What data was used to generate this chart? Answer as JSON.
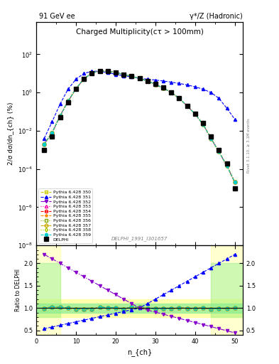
{
  "title_left": "91 GeV ee",
  "title_right": "γ*/Z (Hadronic)",
  "plot_title": "Charged Multiplicity",
  "plot_subtitle": "(cτ > 100mm)",
  "ylabel_main": "2/σ dσ/dn_{ch} (%)",
  "ylabel_ratio": "Ratio to DELPHI",
  "xlabel": "n_{ch}",
  "ref_label": "DELPHI_1991_I301657",
  "rivet_label": "Rivet 3.1.10, ≥ 3.1M events",
  "legend_entries": [
    "DELPHI",
    "Pythia 6.428 350",
    "Pythia 6.428 351",
    "Pythia 6.428 352",
    "Pythia 6.428 353",
    "Pythia 6.428 354",
    "Pythia 6.428 355",
    "Pythia 6.428 356",
    "Pythia 6.428 357",
    "Pythia 6.428 358",
    "Pythia 6.428 359"
  ],
  "nch_values": [
    2,
    4,
    6,
    8,
    10,
    12,
    14,
    16,
    18,
    20,
    22,
    24,
    26,
    28,
    30,
    32,
    34,
    36,
    38,
    40,
    42,
    44,
    46,
    48,
    50
  ],
  "delphi_data": [
    0.001,
    0.005,
    0.05,
    0.3,
    1.5,
    5,
    10,
    13,
    13,
    11,
    9,
    7,
    5.5,
    4,
    2.8,
    1.8,
    1.0,
    0.5,
    0.2,
    0.08,
    0.025,
    0.005,
    0.001,
    0.0002,
    1e-05
  ],
  "py350_data": [
    0.002,
    0.008,
    0.06,
    0.35,
    1.6,
    5.2,
    10.5,
    13.5,
    13,
    11,
    9,
    7,
    5.5,
    4,
    2.7,
    1.7,
    1.0,
    0.5,
    0.2,
    0.075,
    0.022,
    0.004,
    0.0008,
    0.00015,
    2e-05
  ],
  "py351_data": [
    0.004,
    0.03,
    0.25,
    1.5,
    5,
    10,
    13,
    13,
    11,
    9,
    7.5,
    6.5,
    5.5,
    5,
    4.5,
    4,
    3.5,
    3,
    2.5,
    2,
    1.5,
    1,
    0.5,
    0.15,
    0.04
  ],
  "py352_data": [
    0.002,
    0.008,
    0.06,
    0.35,
    1.6,
    5.2,
    10.5,
    13.5,
    13,
    11,
    9,
    7,
    5.5,
    4,
    2.7,
    1.7,
    1.0,
    0.5,
    0.2,
    0.075,
    0.022,
    0.004,
    0.0008,
    0.00015,
    2e-05
  ],
  "py353_data": [
    0.002,
    0.008,
    0.06,
    0.35,
    1.6,
    5.2,
    10.5,
    13.5,
    13,
    11,
    9,
    7,
    5.5,
    4,
    2.7,
    1.7,
    1.0,
    0.5,
    0.2,
    0.075,
    0.022,
    0.004,
    0.0008,
    0.00015,
    2e-05
  ],
  "py354_data": [
    0.002,
    0.008,
    0.06,
    0.35,
    1.6,
    5.2,
    10.5,
    13.5,
    13,
    11,
    9,
    7,
    5.5,
    4,
    2.7,
    1.7,
    1.0,
    0.5,
    0.2,
    0.075,
    0.022,
    0.004,
    0.0008,
    0.00015,
    2e-05
  ],
  "py355_data": [
    0.002,
    0.008,
    0.06,
    0.35,
    1.6,
    5.2,
    10.5,
    13.5,
    13,
    11,
    9,
    7,
    5.5,
    4,
    2.7,
    1.7,
    1.0,
    0.5,
    0.2,
    0.075,
    0.022,
    0.004,
    0.0008,
    0.00015,
    2e-05
  ],
  "py356_data": [
    0.002,
    0.008,
    0.06,
    0.35,
    1.6,
    5.2,
    10.5,
    13.5,
    13,
    11,
    9,
    7,
    5.5,
    4,
    2.7,
    1.7,
    1.0,
    0.5,
    0.2,
    0.075,
    0.022,
    0.004,
    0.0008,
    0.00015,
    2e-05
  ],
  "py357_data": [
    0.002,
    0.008,
    0.06,
    0.35,
    1.6,
    5.2,
    10.5,
    13.5,
    13,
    11,
    9,
    7,
    5.5,
    4,
    2.7,
    1.7,
    1.0,
    0.5,
    0.2,
    0.075,
    0.022,
    0.004,
    0.0008,
    0.00015,
    2e-05
  ],
  "py358_data": [
    0.002,
    0.008,
    0.06,
    0.35,
    1.6,
    5.2,
    10.5,
    13.5,
    13,
    11,
    9,
    7,
    5.5,
    4,
    2.7,
    1.7,
    1.0,
    0.5,
    0.2,
    0.075,
    0.022,
    0.004,
    0.0008,
    0.00015,
    2e-05
  ],
  "py359_data": [
    0.002,
    0.008,
    0.06,
    0.35,
    1.6,
    5.2,
    10.5,
    13.5,
    13,
    11,
    9,
    7,
    5.5,
    4,
    2.7,
    1.7,
    1.0,
    0.5,
    0.2,
    0.075,
    0.022,
    0.004,
    0.0008,
    0.00015,
    2e-05
  ],
  "colors": {
    "delphi": "#000000",
    "py350": "#cccc00",
    "py351": "#0000ff",
    "py352": "#8800cc",
    "py353": "#ff00aa",
    "py354": "#ff0000",
    "py355": "#ff8800",
    "py356": "#88aa00",
    "py357": "#ccaa00",
    "py358": "#aacc00",
    "py359": "#00cccc"
  },
  "band_green_inner": 0.05,
  "band_yellow_outer": 0.1,
  "ylim_main": [
    1e-08,
    5000.0
  ],
  "ylim_ratio": [
    0.4,
    2.4
  ],
  "xlim": [
    0,
    52
  ]
}
